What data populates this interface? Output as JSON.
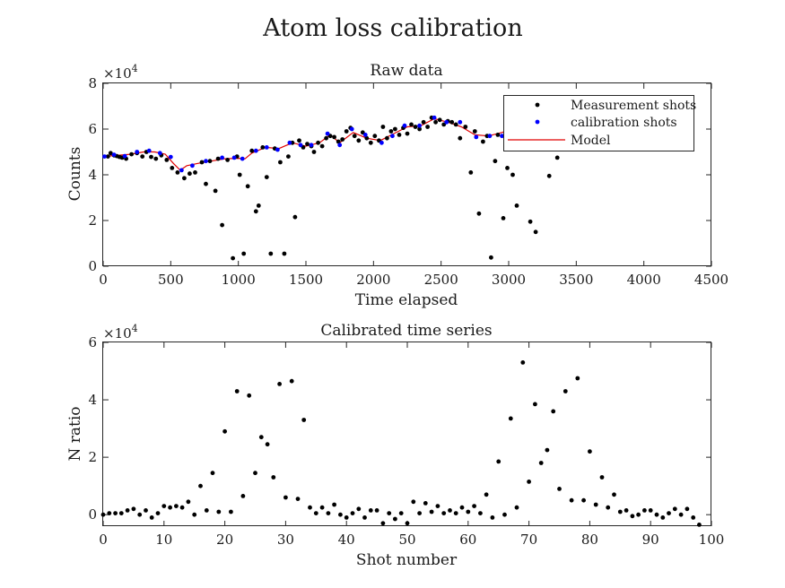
{
  "figure": {
    "title": "Atom loss calibration"
  },
  "chart_data": [
    {
      "type": "scatter",
      "title": "Raw data",
      "xlabel": "Time elapsed",
      "ylabel": "Counts",
      "y_exponent_label": "×10",
      "y_exponent": "4",
      "xlim": [
        0,
        4500
      ],
      "ylim": [
        0,
        8
      ],
      "xticks": [
        "0",
        "500",
        "1000",
        "1500",
        "2000",
        "2500",
        "3000",
        "3500",
        "4000",
        "4500"
      ],
      "yticks": [
        "0",
        "2",
        "4",
        "6",
        "8"
      ],
      "legend_position": "top-right",
      "colors": {
        "measurement": "#000000",
        "calibration": "#0000ff",
        "model": "#e00000"
      },
      "series": [
        {
          "name": "Measurement shots",
          "x": [
            35,
            55,
            80,
            100,
            120,
            140,
            170,
            210,
            250,
            290,
            320,
            355,
            390,
            430,
            470,
            510,
            550,
            600,
            640,
            680,
            730,
            760,
            790,
            830,
            850,
            880,
            920,
            960,
            990,
            1010,
            1040,
            1070,
            1100,
            1130,
            1150,
            1180,
            1210,
            1240,
            1270,
            1310,
            1340,
            1370,
            1400,
            1420,
            1450,
            1480,
            1510,
            1540,
            1560,
            1590,
            1620,
            1650,
            1680,
            1710,
            1740,
            1770,
            1800,
            1830,
            1860,
            1890,
            1920,
            1950,
            1980,
            2010,
            2040,
            2070,
            2100,
            2130,
            2160,
            2190,
            2220,
            2250,
            2280,
            2310,
            2340,
            2370,
            2400,
            2430,
            2460,
            2490,
            2520,
            2550,
            2580,
            2610,
            2640,
            2680,
            2720,
            2750,
            2780,
            2810,
            2840,
            2870,
            2900,
            2920,
            2960,
            2990,
            3030,
            3060,
            3100,
            3160,
            3200,
            3240,
            3300,
            3360
          ],
          "y": [
            4.8,
            4.95,
            4.85,
            4.82,
            4.78,
            4.75,
            4.7,
            4.9,
            4.95,
            4.8,
            5.0,
            4.78,
            4.7,
            4.85,
            4.65,
            4.3,
            4.1,
            3.85,
            4.05,
            4.1,
            4.55,
            3.6,
            4.6,
            3.3,
            4.7,
            1.8,
            4.65,
            0.35,
            4.8,
            4.0,
            0.55,
            3.5,
            5.05,
            2.4,
            2.65,
            5.2,
            3.9,
            0.55,
            5.15,
            4.55,
            0.55,
            4.8,
            5.4,
            2.15,
            5.5,
            5.2,
            5.35,
            5.25,
            5.0,
            5.4,
            5.25,
            5.6,
            5.7,
            5.65,
            5.45,
            5.55,
            5.9,
            6.05,
            5.7,
            5.5,
            5.85,
            5.6,
            5.4,
            5.7,
            5.5,
            6.1,
            5.6,
            5.9,
            6.0,
            5.75,
            6.05,
            5.8,
            6.2,
            6.1,
            6.0,
            6.3,
            6.1,
            6.5,
            6.3,
            6.4,
            6.2,
            6.35,
            6.3,
            6.2,
            5.6,
            6.1,
            4.1,
            5.9,
            2.3,
            5.45,
            5.7,
            0.38,
            4.6,
            5.75,
            2.1,
            4.3,
            4.0,
            2.65,
            5.9,
            1.95,
            1.5,
            5.2,
            3.95,
            4.75
          ]
        },
        {
          "name": "calibration shots",
          "x": [
            10,
            80,
            160,
            250,
            340,
            420,
            500,
            580,
            660,
            760,
            880,
            970,
            1030,
            1130,
            1210,
            1290,
            1380,
            1460,
            1540,
            1660,
            1750,
            1840,
            1940,
            2060,
            2140,
            2230,
            2340,
            2450,
            2540,
            2640,
            2760,
            2860,
            2950,
            3050
          ],
          "y": [
            4.8,
            4.88,
            4.82,
            5.0,
            5.05,
            4.95,
            4.78,
            4.2,
            4.4,
            4.6,
            4.75,
            4.75,
            4.7,
            5.05,
            5.2,
            5.1,
            5.4,
            5.3,
            5.3,
            5.8,
            5.3,
            6.0,
            5.75,
            5.4,
            5.7,
            6.15,
            6.15,
            6.5,
            6.3,
            6.3,
            5.65,
            5.7,
            5.7,
            6.0
          ]
        },
        {
          "name": "Model",
          "x": [
            0,
            100,
            200,
            300,
            380,
            460,
            520,
            570,
            620,
            700,
            800,
            900,
            1000,
            1050,
            1100,
            1200,
            1300,
            1400,
            1500,
            1600,
            1680,
            1750,
            1850,
            1950,
            2050,
            2150,
            2250,
            2350,
            2450,
            2550,
            2650,
            2750,
            2850,
            2950,
            3050
          ],
          "y": [
            4.8,
            4.85,
            4.9,
            5.0,
            5.0,
            4.9,
            4.5,
            4.2,
            4.4,
            4.5,
            4.6,
            4.7,
            4.72,
            4.7,
            4.95,
            5.2,
            5.15,
            5.4,
            5.25,
            5.4,
            5.75,
            5.4,
            5.85,
            5.6,
            5.5,
            5.8,
            6.1,
            6.15,
            6.45,
            6.3,
            6.1,
            5.75,
            5.7,
            5.85,
            6.05
          ]
        }
      ]
    },
    {
      "type": "scatter",
      "title": "Calibrated time series",
      "xlabel": "Shot number",
      "ylabel": "N ratio",
      "y_exponent_label": "×10",
      "y_exponent": "4",
      "xlim": [
        0,
        100
      ],
      "ylim": [
        -0.4,
        6
      ],
      "xticks": [
        "0",
        "10",
        "20",
        "30",
        "40",
        "50",
        "60",
        "70",
        "80",
        "90",
        "100"
      ],
      "yticks": [
        "0",
        "2",
        "4",
        "6"
      ],
      "colors": {
        "points": "#000000"
      },
      "series": [
        {
          "x": [
            0,
            1,
            2,
            3,
            4,
            5,
            6,
            7,
            8,
            9,
            10,
            11,
            12,
            13,
            14,
            15,
            16,
            17,
            18,
            19,
            20,
            21,
            22,
            23,
            24,
            25,
            26,
            27,
            28,
            29,
            30,
            31,
            32,
            33,
            34,
            35,
            36,
            37,
            38,
            39,
            40,
            41,
            42,
            43,
            44,
            45,
            46,
            47,
            48,
            49,
            50,
            51,
            52,
            53,
            54,
            55,
            56,
            57,
            58,
            59,
            60,
            61,
            62,
            63,
            64,
            65,
            66,
            67,
            68,
            69,
            70,
            71,
            72,
            73,
            74,
            75,
            76,
            77,
            78,
            79,
            80,
            81,
            82,
            83,
            84,
            85,
            86,
            87,
            88,
            89,
            90,
            91,
            92,
            93,
            94,
            95,
            96,
            97,
            98
          ],
          "y": [
            0.0,
            0.05,
            0.05,
            0.05,
            0.15,
            0.2,
            0.0,
            0.15,
            -0.1,
            0.05,
            0.3,
            0.25,
            0.3,
            0.25,
            0.45,
            0.0,
            1.0,
            0.15,
            1.45,
            0.1,
            2.9,
            0.1,
            4.3,
            0.65,
            4.15,
            1.45,
            2.7,
            2.45,
            1.3,
            4.55,
            0.6,
            4.65,
            0.55,
            3.3,
            0.25,
            0.05,
            0.25,
            0.05,
            0.35,
            0.0,
            -0.1,
            0.05,
            0.2,
            -0.1,
            0.15,
            0.15,
            -0.3,
            0.05,
            -0.15,
            0.05,
            -0.3,
            0.45,
            0.05,
            0.4,
            0.1,
            0.3,
            0.05,
            0.15,
            0.05,
            0.25,
            0.1,
            0.3,
            0.05,
            0.7,
            -0.1,
            1.85,
            0.0,
            3.35,
            0.25,
            5.3,
            1.15,
            3.85,
            1.8,
            2.25,
            3.6,
            0.9,
            4.3,
            0.5,
            4.75,
            0.5,
            2.2,
            0.35,
            1.3,
            0.25,
            0.7,
            0.1,
            0.15,
            -0.05,
            0.0,
            0.15,
            0.15,
            0.0,
            -0.1,
            0.05,
            0.2,
            0.0,
            0.2,
            -0.1,
            -0.35
          ]
        }
      ]
    }
  ]
}
